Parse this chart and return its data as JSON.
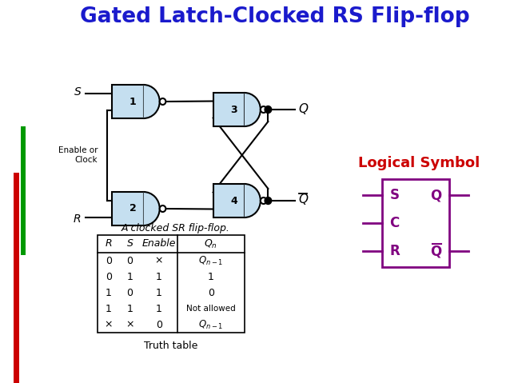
{
  "title": "Gated Latch-Clocked RS Flip-flop",
  "title_color": "#1a1acc",
  "bg_color": "#ffffff",
  "subtitle": "A clocked SR flip-flop.",
  "logical_symbol_label": "Logical Symbol",
  "logical_symbol_color": "#cc0000",
  "gate_fill": "#c5dff0",
  "gate_edge": "#000000",
  "truth_table": {
    "headers": [
      "R",
      "S",
      "Enable",
      "Q_n"
    ],
    "rows": [
      [
        "0",
        "0",
        "x",
        "Q_{n-1}"
      ],
      [
        "0",
        "1",
        "1",
        "1"
      ],
      [
        "1",
        "0",
        "1",
        "0"
      ],
      [
        "1",
        "1",
        "1",
        "Not allowed"
      ],
      [
        "x",
        "x",
        "0",
        "Q_{n-1}"
      ]
    ]
  },
  "box_color": "#800080",
  "bar_red": "#cc0000",
  "bar_green": "#009900"
}
